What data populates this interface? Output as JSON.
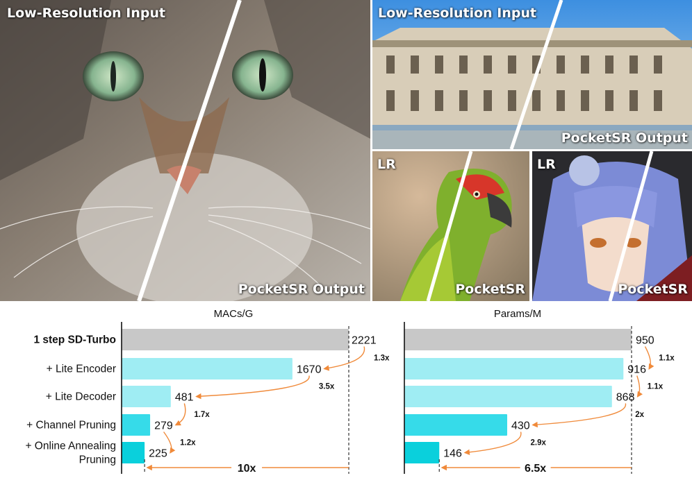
{
  "panels": {
    "cat": {
      "top_label": "Low-Resolution Input",
      "bottom_label": "PocketSR Output"
    },
    "building": {
      "top_label": "Low-Resolution Input",
      "bottom_label": "PocketSR Output"
    },
    "parrot": {
      "top_label": "LR",
      "bottom_label": "PocketSR"
    },
    "anime": {
      "top_label": "LR",
      "bottom_label": "PocketSR"
    }
  },
  "colors": {
    "baseline_bar": "#c8c8c8",
    "lite_bar": "#9fedf3",
    "pruning_bar": "#36dbe9",
    "annealing_bar": "#0ad0dc",
    "arrow": "#f08a3a"
  },
  "chart_data": [
    {
      "type": "bar",
      "orientation": "horizontal",
      "title": "MACs/G",
      "categories": [
        "1 step SD-Turbo",
        "+ Lite Encoder",
        "+ Lite Decoder",
        "+ Channel Pruning",
        "+ Online Annealing Pruning"
      ],
      "values": [
        2221,
        1670,
        481,
        279,
        225
      ],
      "value_labels": [
        "2221",
        "1670",
        "481",
        "279",
        "225"
      ],
      "step_ratios": [
        "1.3x",
        "3.5x",
        "1.7x",
        "1.2x"
      ],
      "total_ratio": "10x",
      "xlim": [
        0,
        2221
      ]
    },
    {
      "type": "bar",
      "orientation": "horizontal",
      "title": "Params/M",
      "categories": [
        "1 step SD-Turbo",
        "+ Lite Encoder",
        "+ Lite Decoder",
        "+ Channel Pruning",
        "+ Online Annealing Pruning"
      ],
      "values": [
        950,
        916,
        868,
        430,
        146
      ],
      "value_labels": [
        "950",
        "916",
        "868",
        "430",
        "146"
      ],
      "step_ratios": [
        "1.1x",
        "1.1x",
        "2x",
        "2.9x"
      ],
      "total_ratio": "6.5x",
      "xlim": [
        0,
        950
      ]
    }
  ]
}
